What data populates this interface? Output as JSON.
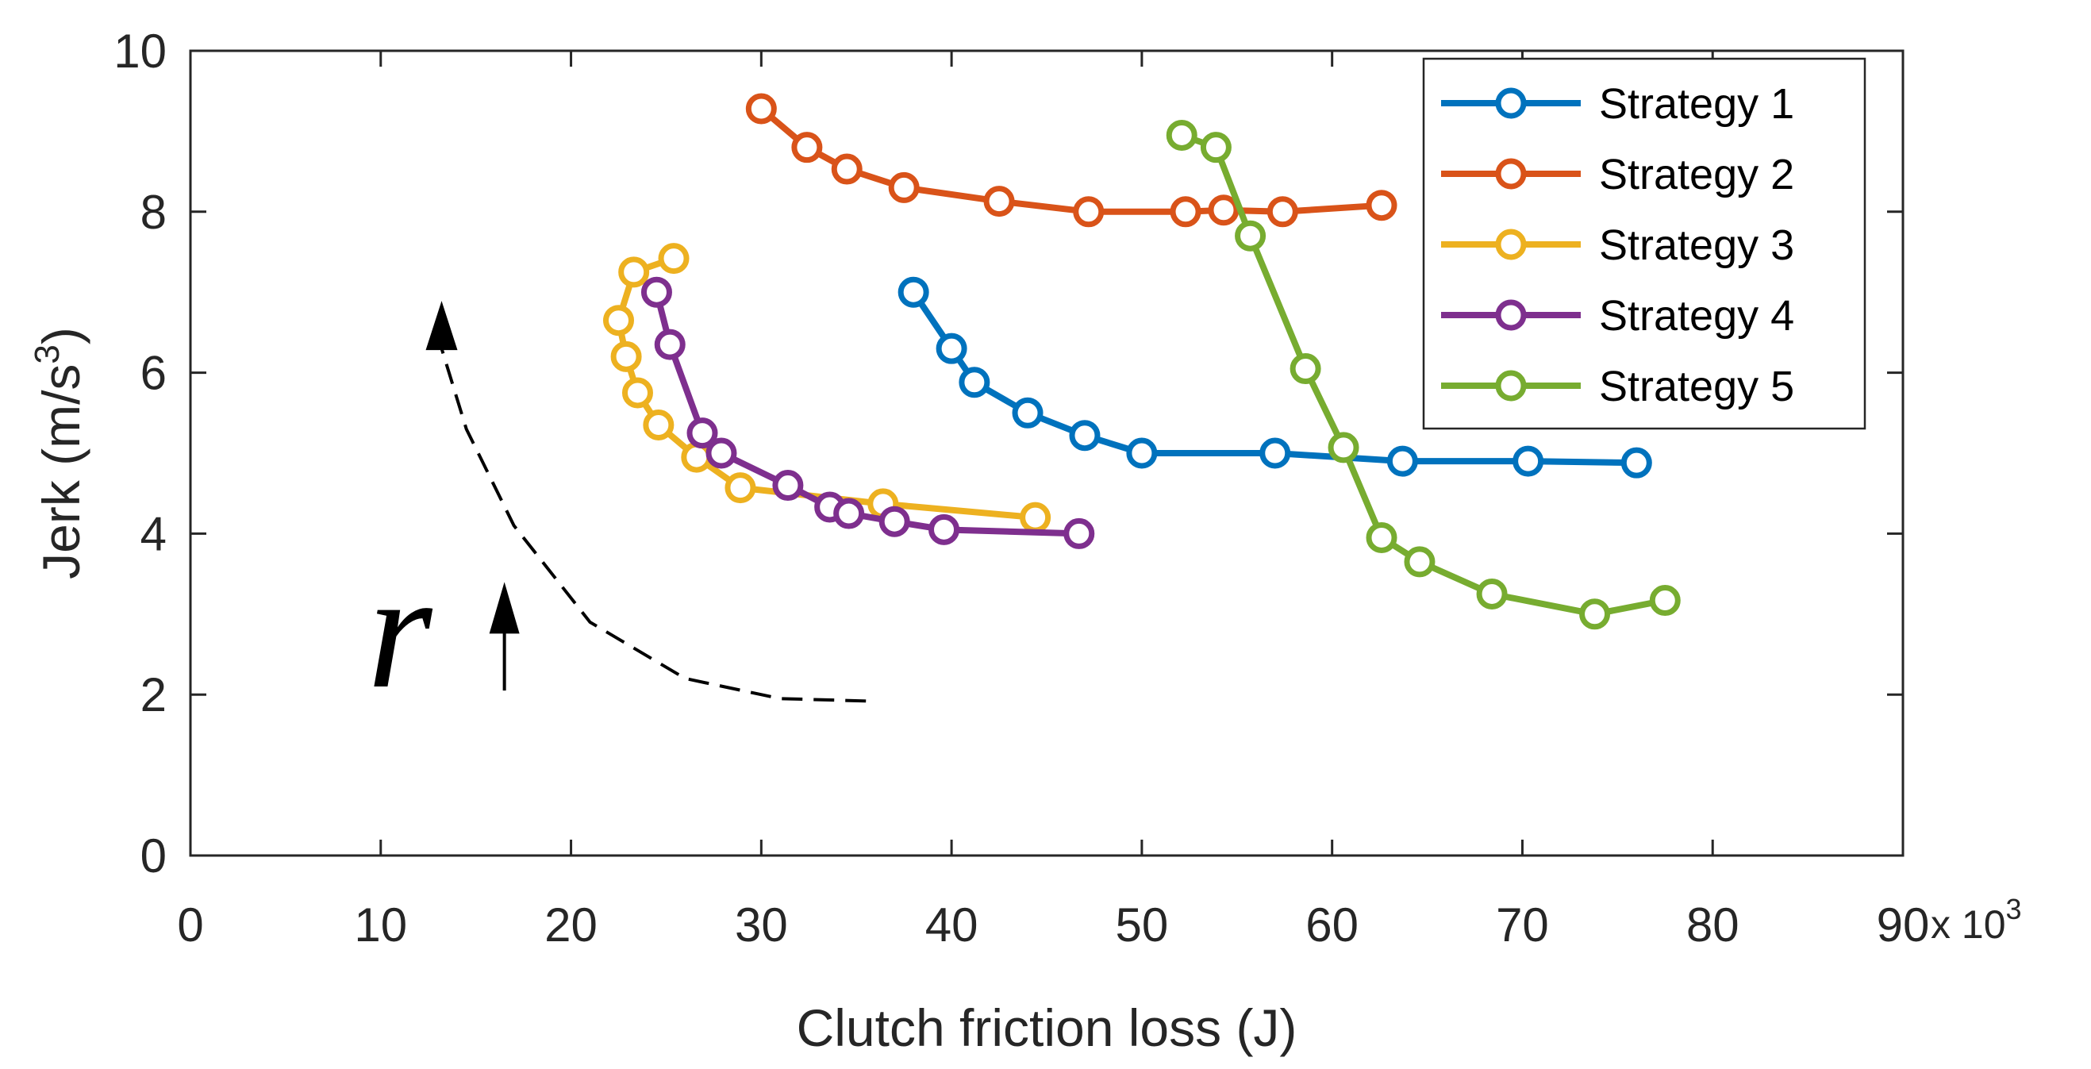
{
  "chart_data": {
    "type": "line",
    "title": "",
    "xlabel": "Clutch friction loss (J)",
    "ylabel": "Jerk (m/s",
    "ylabel_superscript": "3",
    "ylabel_suffix": ")",
    "x_exponent_base": "x 10",
    "x_exponent_power": "3",
    "xlim": [
      0,
      90
    ],
    "ylim": [
      0,
      10
    ],
    "xticks": [
      0,
      10,
      20,
      30,
      40,
      50,
      60,
      70,
      80,
      90
    ],
    "yticks": [
      0,
      2,
      4,
      6,
      8,
      10
    ],
    "grid": false,
    "legend_position": "top-right",
    "series": [
      {
        "name": "Strategy 1",
        "color": "#0072BD",
        "x": [
          38.0,
          40.0,
          41.2,
          44.0,
          47.0,
          50.0,
          57.0,
          63.7,
          70.3,
          76.0
        ],
        "y": [
          7.0,
          6.3,
          5.88,
          5.5,
          5.22,
          5.0,
          5.0,
          4.9,
          4.9,
          4.88
        ]
      },
      {
        "name": "Strategy 2",
        "color": "#D95319",
        "x": [
          30.0,
          32.4,
          34.5,
          37.5,
          42.5,
          47.2,
          52.3,
          54.3,
          57.4,
          62.6
        ],
        "y": [
          9.28,
          8.8,
          8.53,
          8.3,
          8.13,
          8.0,
          8.0,
          8.02,
          8.0,
          8.08
        ]
      },
      {
        "name": "Strategy 3",
        "color": "#EDB120",
        "x": [
          25.4,
          23.3,
          22.5,
          22.9,
          23.5,
          24.6,
          26.6,
          28.9,
          36.4,
          44.4
        ],
        "y": [
          7.42,
          7.25,
          6.65,
          6.2,
          5.75,
          5.35,
          4.95,
          4.57,
          4.37,
          4.2
        ]
      },
      {
        "name": "Strategy 4",
        "color": "#7E2F8E",
        "x": [
          24.5,
          25.2,
          26.9,
          27.9,
          31.4,
          33.6,
          34.6,
          37.0,
          39.6,
          46.7
        ],
        "y": [
          7.0,
          6.35,
          5.25,
          5.0,
          4.6,
          4.33,
          4.25,
          4.15,
          4.05,
          4.0
        ]
      },
      {
        "name": "Strategy 5",
        "color": "#77AC30",
        "x": [
          52.1,
          53.9,
          55.7,
          58.6,
          60.6,
          62.6,
          64.6,
          68.4,
          73.8,
          77.5
        ],
        "y": [
          8.95,
          8.8,
          7.7,
          6.05,
          5.07,
          3.95,
          3.65,
          3.25,
          3.0,
          3.17
        ]
      }
    ],
    "annotations": {
      "r_label": "r",
      "dashed_arrow": {
        "x": [
          35.5,
          31.0,
          26.0,
          21.0,
          17.0,
          14.5,
          13.2
        ],
        "y": [
          1.92,
          1.95,
          2.2,
          2.9,
          4.1,
          5.3,
          6.3
        ]
      },
      "up_arrow": {
        "x": [
          16.5,
          16.5
        ],
        "y": [
          2.05,
          3.3
        ]
      }
    }
  }
}
